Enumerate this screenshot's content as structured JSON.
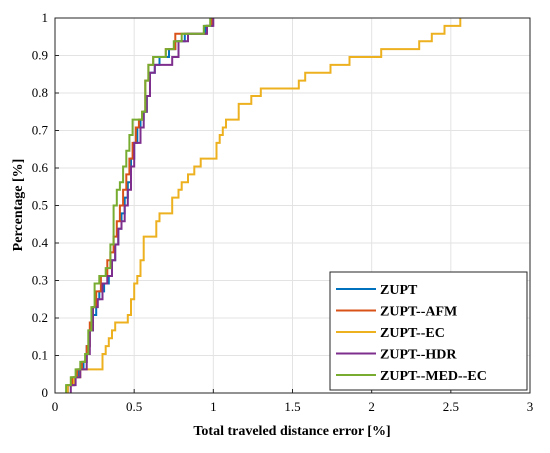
{
  "chart_data": {
    "type": "line",
    "title": "",
    "xlabel": "Total traveled distance error [%]",
    "ylabel": "Percentage [%]",
    "xlim": [
      0,
      3
    ],
    "ylim": [
      0,
      1
    ],
    "xticks": [
      "0",
      "0.5",
      "1",
      "1.5",
      "2",
      "2.5",
      "3"
    ],
    "yticks": [
      "0",
      "0.1",
      "0.2",
      "0.3",
      "0.4",
      "0.5",
      "0.6",
      "0.7",
      "0.8",
      "0.9",
      "1"
    ],
    "grid": true,
    "legend_position": "bottom-right",
    "step": true,
    "series": [
      {
        "name": "ZUPT",
        "color": "#0072BD",
        "x": [
          0.08,
          0.12,
          0.15,
          0.18,
          0.2,
          0.22,
          0.24,
          0.26,
          0.28,
          0.31,
          0.34,
          0.36,
          0.38,
          0.4,
          0.42,
          0.44,
          0.46,
          0.48,
          0.5,
          0.52,
          0.54,
          0.56,
          0.58,
          0.6,
          0.63,
          0.66,
          0.72,
          0.76,
          0.82,
          0.88,
          0.95,
          0.99
        ],
        "y": [
          0.021,
          0.042,
          0.063,
          0.083,
          0.125,
          0.167,
          0.208,
          0.25,
          0.271,
          0.292,
          0.312,
          0.354,
          0.396,
          0.438,
          0.479,
          0.521,
          0.562,
          0.625,
          0.667,
          0.708,
          0.729,
          0.75,
          0.792,
          0.854,
          0.875,
          0.896,
          0.917,
          0.938,
          0.958,
          0.958,
          0.979,
          1.0
        ]
      },
      {
        "name": "ZUPT--AFM",
        "color": "#D95319",
        "x": [
          0.08,
          0.11,
          0.14,
          0.17,
          0.2,
          0.22,
          0.24,
          0.26,
          0.29,
          0.33,
          0.35,
          0.37,
          0.39,
          0.41,
          0.43,
          0.45,
          0.47,
          0.49,
          0.51,
          0.53,
          0.55,
          0.57,
          0.59,
          0.62,
          0.65,
          0.7,
          0.76,
          0.82,
          0.9,
          0.96,
          0.99
        ],
        "y": [
          0.021,
          0.042,
          0.063,
          0.083,
          0.125,
          0.188,
          0.229,
          0.271,
          0.312,
          0.354,
          0.375,
          0.417,
          0.458,
          0.5,
          0.542,
          0.583,
          0.625,
          0.667,
          0.708,
          0.729,
          0.75,
          0.833,
          0.875,
          0.896,
          0.896,
          0.917,
          0.958,
          0.958,
          0.958,
          0.979,
          1.0
        ]
      },
      {
        "name": "ZUPT--EC",
        "color": "#EDB120",
        "x": [
          0.08,
          0.12,
          0.16,
          0.2,
          0.24,
          0.3,
          0.32,
          0.34,
          0.36,
          0.38,
          0.42,
          0.46,
          0.48,
          0.5,
          0.52,
          0.54,
          0.56,
          0.58,
          0.64,
          0.66,
          0.7,
          0.74,
          0.78,
          0.8,
          0.84,
          0.88,
          0.92,
          0.96,
          1.02,
          1.04,
          1.06,
          1.08,
          1.12,
          1.16,
          1.2,
          1.24,
          1.3,
          1.5,
          1.54,
          1.58,
          1.64,
          1.74,
          1.8,
          1.86,
          2.0,
          2.06,
          2.16,
          2.22,
          2.3,
          2.38,
          2.46,
          2.56
        ],
        "y": [
          0.021,
          0.042,
          0.063,
          0.063,
          0.063,
          0.104,
          0.125,
          0.146,
          0.167,
          0.188,
          0.188,
          0.208,
          0.25,
          0.292,
          0.312,
          0.354,
          0.417,
          0.417,
          0.458,
          0.479,
          0.479,
          0.521,
          0.542,
          0.562,
          0.583,
          0.604,
          0.625,
          0.625,
          0.667,
          0.688,
          0.708,
          0.729,
          0.729,
          0.771,
          0.771,
          0.792,
          0.812,
          0.812,
          0.833,
          0.854,
          0.854,
          0.875,
          0.875,
          0.896,
          0.896,
          0.917,
          0.917,
          0.917,
          0.938,
          0.958,
          0.979,
          1.0
        ]
      },
      {
        "name": "ZUPT--HDR",
        "color": "#7E2F8E",
        "x": [
          0.1,
          0.13,
          0.16,
          0.2,
          0.22,
          0.24,
          0.27,
          0.3,
          0.33,
          0.36,
          0.38,
          0.4,
          0.42,
          0.44,
          0.46,
          0.48,
          0.5,
          0.52,
          0.54,
          0.56,
          0.58,
          0.6,
          0.63,
          0.68,
          0.74,
          0.78,
          0.84,
          0.9,
          0.96,
          1.0
        ],
        "y": [
          0.021,
          0.042,
          0.063,
          0.104,
          0.167,
          0.229,
          0.25,
          0.292,
          0.312,
          0.354,
          0.396,
          0.438,
          0.458,
          0.5,
          0.542,
          0.604,
          0.667,
          0.667,
          0.708,
          0.75,
          0.792,
          0.854,
          0.875,
          0.875,
          0.896,
          0.938,
          0.958,
          0.958,
          0.979,
          1.0
        ]
      },
      {
        "name": "ZUPT--MED--EC",
        "color": "#77AC30",
        "x": [
          0.07,
          0.1,
          0.13,
          0.16,
          0.19,
          0.21,
          0.23,
          0.25,
          0.28,
          0.32,
          0.35,
          0.37,
          0.39,
          0.41,
          0.43,
          0.45,
          0.47,
          0.49,
          0.51,
          0.53,
          0.55,
          0.57,
          0.59,
          0.62,
          0.65,
          0.7,
          0.75,
          0.8,
          0.88,
          0.94,
          0.98
        ],
        "y": [
          0.021,
          0.042,
          0.063,
          0.083,
          0.104,
          0.167,
          0.229,
          0.292,
          0.312,
          0.333,
          0.396,
          0.5,
          0.542,
          0.562,
          0.604,
          0.646,
          0.688,
          0.729,
          0.729,
          0.729,
          0.75,
          0.833,
          0.875,
          0.896,
          0.896,
          0.917,
          0.938,
          0.958,
          0.958,
          0.979,
          1.0
        ]
      }
    ]
  }
}
